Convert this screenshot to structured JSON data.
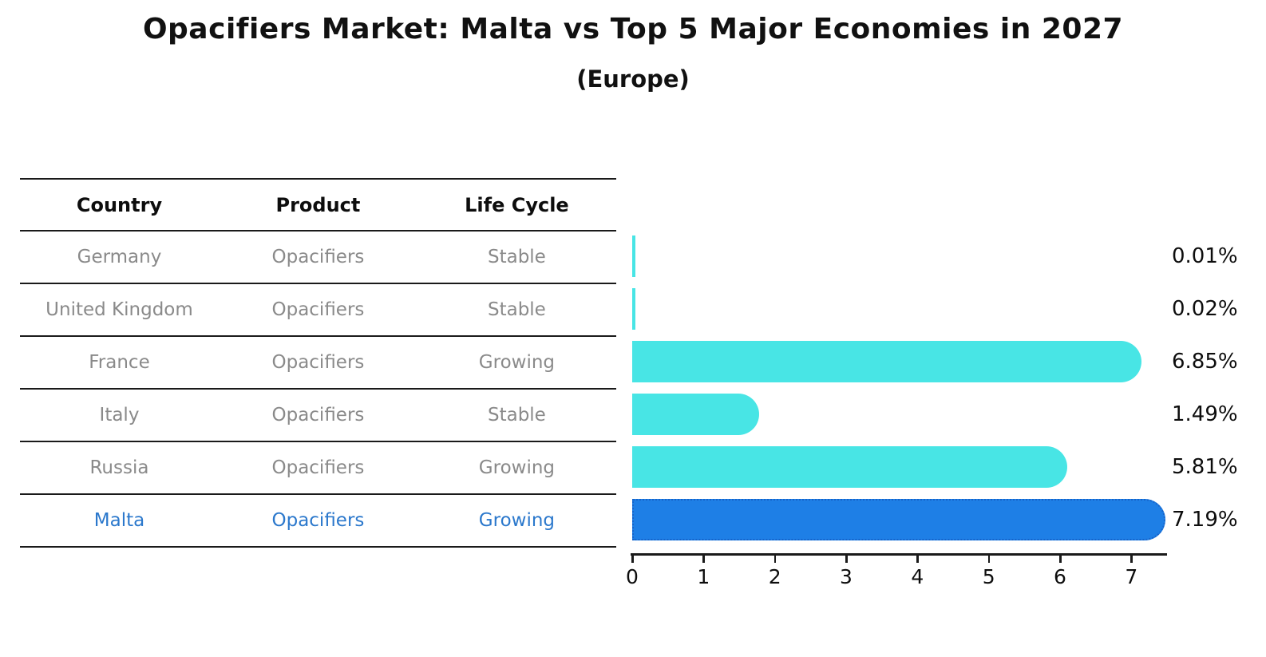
{
  "title": "Opacifiers Market: Malta vs Top 5 Major Economies in 2027",
  "subtitle": "(Europe)",
  "table": {
    "headers": [
      "Country",
      "Product",
      "Life Cycle"
    ],
    "rows": [
      {
        "country": "Germany",
        "product": "Opacifiers",
        "life_cycle": "Stable",
        "highlight": false
      },
      {
        "country": "United Kingdom",
        "product": "Opacifiers",
        "life_cycle": "Stable",
        "highlight": false
      },
      {
        "country": "France",
        "product": "Opacifiers",
        "life_cycle": "Growing",
        "highlight": false
      },
      {
        "country": "Italy",
        "product": "Opacifiers",
        "life_cycle": "Stable",
        "highlight": false
      },
      {
        "country": "Russia",
        "product": "Opacifiers",
        "life_cycle": "Growing",
        "highlight": false
      },
      {
        "country": "Malta",
        "product": "Opacifiers",
        "life_cycle": "Growing",
        "highlight": true
      }
    ]
  },
  "chart_data": {
    "type": "bar",
    "orientation": "horizontal",
    "categories": [
      "Germany",
      "United Kingdom",
      "France",
      "Italy",
      "Russia",
      "Malta"
    ],
    "values": [
      0.01,
      0.02,
      6.85,
      1.49,
      5.81,
      7.19
    ],
    "value_labels": [
      "0.01%",
      "0.02%",
      "6.85%",
      "1.49%",
      "5.81%",
      "7.19%"
    ],
    "x_ticks": [
      0,
      1,
      2,
      3,
      4,
      5,
      6,
      7
    ],
    "xlim": [
      0,
      7.5
    ],
    "grid": false,
    "legend": false,
    "bar_color": "#48E5E5",
    "highlight_color": "#1E7FE6",
    "highlight_border_color": "#1663C9",
    "highlight_index": 5,
    "highlight_text_color": "#2B78CC"
  }
}
